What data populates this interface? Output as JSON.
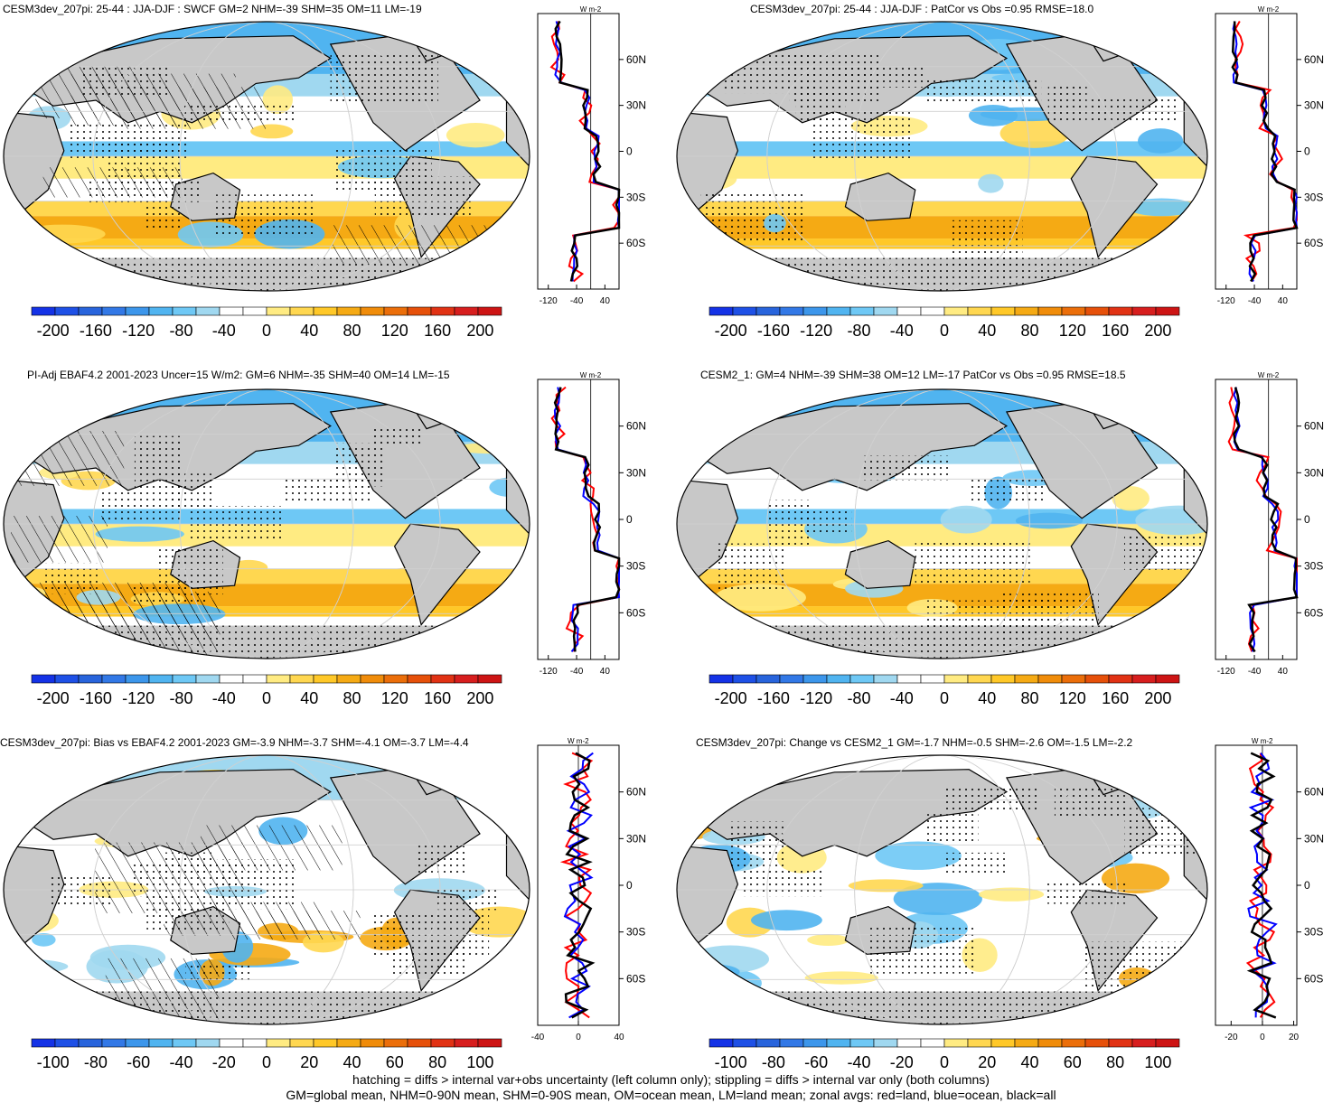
{
  "panels": [
    {
      "title": "CESM3dev_207pi: 25-44 : JJA-DJF : SWCF GM=2 NHM=-39 SHM=35 OM=11 LM=-19",
      "colorbar": {
        "ticks": [
          "-200",
          "-160",
          "-120",
          "-80",
          "-40",
          "0",
          "40",
          "80",
          "120",
          "160",
          "200"
        ],
        "range": [
          -220,
          220
        ]
      },
      "zonal": {
        "unit": "W m-2",
        "xticks": [
          "-120",
          "-40",
          "40"
        ],
        "xrange": [
          -150,
          80
        ],
        "zero_line_x": 0,
        "ylabels": [
          "60N",
          "30N",
          "0",
          "30S",
          "60S"
        ]
      },
      "hatching": true,
      "scheme": "summer"
    },
    {
      "title": "CESM3dev_207pi: 25-44 : JJA-DJF : PatCor vs Obs =0.95 RMSE=18.0",
      "colorbar": {
        "ticks": [
          "-200",
          "-160",
          "-120",
          "-80",
          "-40",
          "0",
          "40",
          "80",
          "120",
          "160",
          "200"
        ],
        "range": [
          -220,
          220
        ]
      },
      "zonal": {
        "unit": "W m-2",
        "xticks": [
          "-120",
          "-40",
          "40"
        ],
        "xrange": [
          -150,
          80
        ],
        "zero_line_x": 0,
        "ylabels": [
          "60N",
          "30N",
          "0",
          "30S",
          "60S"
        ]
      },
      "hatching": false,
      "scheme": "summer"
    },
    {
      "title": "PI-Adj EBAF4.2 2001-2023 Uncer=15 W/m2: GM=6 NHM=-35 SHM=40 OM=14 LM=-15",
      "colorbar": {
        "ticks": [
          "-200",
          "-160",
          "-120",
          "-80",
          "-40",
          "0",
          "40",
          "80",
          "120",
          "160",
          "200"
        ],
        "range": [
          -220,
          220
        ]
      },
      "zonal": {
        "unit": "W m-2",
        "xticks": [
          "-120",
          "-40",
          "40"
        ],
        "xrange": [
          -150,
          80
        ],
        "zero_line_x": 0,
        "ylabels": [
          "60N",
          "30N",
          "0",
          "30S",
          "60S"
        ]
      },
      "hatching": true,
      "scheme": "summer"
    },
    {
      "title": "CESM2_1: GM=4 NHM=-39 SHM=38 OM=12 LM=-17 PatCor vs Obs =0.95 RMSE=18.5",
      "colorbar": {
        "ticks": [
          "-200",
          "-160",
          "-120",
          "-80",
          "-40",
          "0",
          "40",
          "80",
          "120",
          "160",
          "200"
        ],
        "range": [
          -220,
          220
        ]
      },
      "zonal": {
        "unit": "W m-2",
        "xticks": [
          "-120",
          "-40",
          "40"
        ],
        "xrange": [
          -150,
          80
        ],
        "zero_line_x": 0,
        "ylabels": [
          "60N",
          "30N",
          "0",
          "30S",
          "60S"
        ]
      },
      "hatching": false,
      "scheme": "summer"
    },
    {
      "title": "CESM3dev_207pi: Bias vs EBAF4.2 2001-2023 GM=-3.9 NHM=-3.7 SHM=-4.1 OM=-3.7 LM=-4.4",
      "colorbar": {
        "ticks": [
          "-100",
          "-80",
          "-60",
          "-40",
          "-20",
          "0",
          "20",
          "40",
          "60",
          "80",
          "100"
        ],
        "range": [
          -110,
          110
        ]
      },
      "zonal": {
        "unit": "W m-2",
        "xticks": [
          "-40",
          "0",
          "40"
        ],
        "xrange": [
          -40,
          40
        ],
        "zero_line_x": 0,
        "ylabels": [
          "60N",
          "30N",
          "0",
          "30S",
          "60S"
        ]
      },
      "hatching": true,
      "scheme": "bias"
    },
    {
      "title": "CESM3dev_207pi: Change vs CESM2_1 GM=-1.7 NHM=-0.5 SHM=-2.6 OM=-1.5 LM=-2.2",
      "colorbar": {
        "ticks": [
          "-100",
          "-80",
          "-60",
          "-40",
          "-20",
          "0",
          "20",
          "40",
          "60",
          "80",
          "100"
        ],
        "range": [
          -110,
          110
        ]
      },
      "zonal": {
        "unit": "W m-2",
        "xticks": [
          "-20",
          "0",
          "20"
        ],
        "xrange": [
          -30,
          22
        ],
        "zero_line_x": 0,
        "ylabels": [
          "60N",
          "30N",
          "0",
          "30S",
          "60S"
        ]
      },
      "hatching": false,
      "scheme": "change"
    }
  ],
  "footer": {
    "line1": "hatching = diffs > internal var+obs uncertainty (left column only); stippling = diffs > internal var only (both columns)",
    "line2": "GM=global mean, NHM=0-90N mean, SHM=0-90S mean, OM=ocean mean, LM=land mean; zonal avgs: red=land, blue=ocean, black=all"
  },
  "colors": {
    "cbar": [
      "#1432e6",
      "#1e50e6",
      "#2864dc",
      "#3278e6",
      "#3c96eb",
      "#50b4f0",
      "#6ec8f5",
      "#a0d8f0",
      "#ffffff",
      "#ffffff",
      "#ffeb82",
      "#ffd750",
      "#ffc828",
      "#f5aa14",
      "#f08c0a",
      "#eb6e0a",
      "#e6500a",
      "#e13214",
      "#d71e1e",
      "#cd1414"
    ],
    "land": "#c8c8c8",
    "red_series": "#ff0000",
    "blue_series": "#0000ff",
    "black_series": "#000000"
  }
}
